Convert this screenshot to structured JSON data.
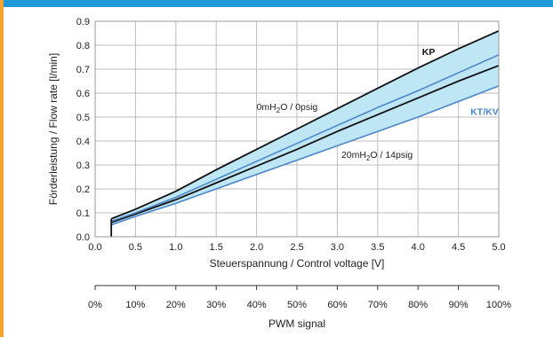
{
  "chart_data": {
    "type": "line",
    "xlabel": "Steuerspannung / Control voltage [V]",
    "ylabel": "Förderleistung / Flow rate [l/min]",
    "xlim": [
      0,
      5
    ],
    "ylim": [
      0,
      0.9
    ],
    "x_ticks": [
      "0.0",
      "0.5",
      "1.0",
      "1.5",
      "2.0",
      "2.5",
      "3.0",
      "3.5",
      "4.0",
      "4.5",
      "5.0"
    ],
    "y_ticks": [
      "0.0",
      "0.1",
      "0.2",
      "0.3",
      "0.4",
      "0.5",
      "0.6",
      "0.7",
      "0.8",
      "0.9"
    ],
    "grid": true,
    "pwm_axis": {
      "label": "PWM signal",
      "ticks": [
        "0%",
        "10%",
        "20%",
        "30%",
        "40%",
        "50%",
        "60%",
        "70%",
        "80%",
        "90%",
        "100%"
      ]
    },
    "series": [
      {
        "name": "KP",
        "group": "KP",
        "condition": "0mH2O / 0psig",
        "color": "#111111",
        "x": [
          0.2,
          0.5,
          1.0,
          1.5,
          2.0,
          2.5,
          3.0,
          3.5,
          4.0,
          4.5,
          5.0
        ],
        "y": [
          0.075,
          0.115,
          0.19,
          0.28,
          0.365,
          0.45,
          0.535,
          0.62,
          0.705,
          0.785,
          0.86
        ]
      },
      {
        "name": "KP",
        "group": "KP",
        "condition": "20mH2O / 14psig",
        "color": "#111111",
        "x": [
          0.2,
          0.5,
          1.0,
          1.5,
          2.0,
          2.5,
          3.0,
          3.5,
          4.0,
          4.5,
          5.0
        ],
        "y": [
          0.06,
          0.095,
          0.155,
          0.225,
          0.295,
          0.365,
          0.44,
          0.51,
          0.58,
          0.65,
          0.715
        ]
      },
      {
        "name": "KT/KV",
        "group": "KT/KV",
        "condition": "0mH2O / 0psig",
        "color": "#4a86c8",
        "x": [
          0.2,
          0.5,
          1.0,
          1.5,
          2.0,
          2.5,
          3.0,
          3.5,
          4.0,
          4.5,
          5.0
        ],
        "y": [
          0.065,
          0.1,
          0.165,
          0.24,
          0.315,
          0.39,
          0.465,
          0.54,
          0.61,
          0.685,
          0.76
        ]
      },
      {
        "name": "KT/KV",
        "group": "KT/KV",
        "condition": "20mH2O / 14psig",
        "color": "#4a86c8",
        "x": [
          0.2,
          0.5,
          1.0,
          1.5,
          2.0,
          2.5,
          3.0,
          3.5,
          4.0,
          4.5,
          5.0
        ],
        "y": [
          0.05,
          0.085,
          0.14,
          0.2,
          0.26,
          0.32,
          0.38,
          0.44,
          0.5,
          0.565,
          0.63
        ]
      }
    ],
    "start_segment": {
      "x": 0.2,
      "y_from": 0.0,
      "y_to": 0.075
    },
    "band_fill": "#bfe6f5",
    "annotations": [
      {
        "text_main": "0mH",
        "text_sub": "2",
        "text_rest": "O / 0psig",
        "x": 2.0,
        "y": 0.53
      },
      {
        "text_main": "20mH",
        "text_sub": "2",
        "text_rest": "O / 14psig",
        "x": 3.05,
        "y": 0.33
      }
    ],
    "series_labels": [
      {
        "text": "KP",
        "x": 4.05,
        "y": 0.76,
        "style": "kp"
      },
      {
        "text": "KT/KV",
        "x": 4.65,
        "y": 0.51,
        "style": "kt"
      }
    ]
  }
}
